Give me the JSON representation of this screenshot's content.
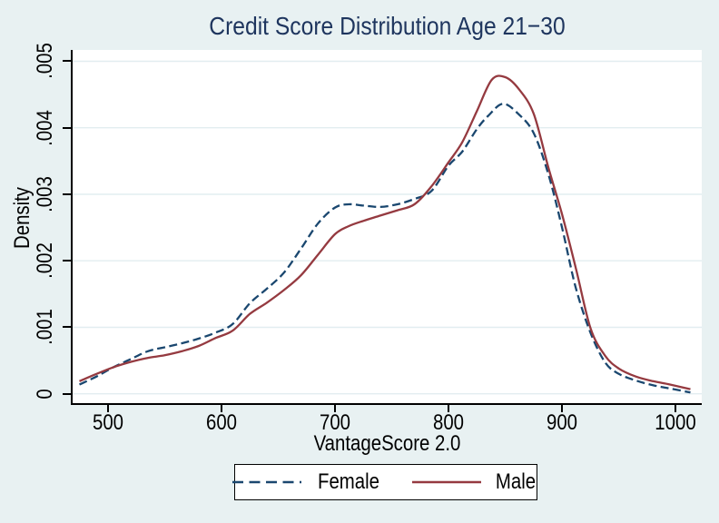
{
  "title": "Credit Score Distribution Age 21−30",
  "chart_data": {
    "type": "line",
    "title": "Credit Score Distribution Age 21−30",
    "xlabel": "VantageScore 2.0",
    "ylabel": "Density",
    "xlim": [
      469,
      1023
    ],
    "ylim": [
      -0.00014,
      0.00517
    ],
    "x_ticks": [
      500,
      600,
      700,
      800,
      900,
      1000
    ],
    "x_tick_labels": [
      "500",
      "600",
      "700",
      "800",
      "900",
      "1000"
    ],
    "y_ticks": [
      0,
      0.001,
      0.002,
      0.003,
      0.004,
      0.005
    ],
    "y_tick_labels": [
      "0",
      ".001",
      ".002",
      ".003",
      ".004",
      ".005"
    ],
    "grid": true,
    "grid_color": "#e2edf0",
    "plot_background": "#ffffff",
    "page_background": "#e8f1f2",
    "title_color": "#1e355e",
    "axis_color": "#000000",
    "legend_position": "bottom-center",
    "series": [
      {
        "name": "Female",
        "style": "dashed",
        "color": "#1a476f",
        "dash": "9,4.5",
        "x": [
          475,
          490,
          505,
          520,
          535,
          550,
          565,
          580,
          595,
          610,
          625,
          640,
          655,
          670,
          685,
          700,
          712,
          725,
          740,
          755,
          770,
          785,
          800,
          812,
          825,
          835,
          848,
          862,
          875,
          888,
          900,
          912,
          925,
          938,
          950,
          965,
          980,
          995,
          1013
        ],
        "y": [
          0.00014,
          0.00026,
          0.0004,
          0.00052,
          0.00064,
          0.0007,
          0.00076,
          0.00083,
          0.00092,
          0.00105,
          0.00136,
          0.00158,
          0.00182,
          0.00218,
          0.00256,
          0.0028,
          0.00285,
          0.00283,
          0.00281,
          0.00285,
          0.00293,
          0.00305,
          0.00343,
          0.00364,
          0.00398,
          0.00418,
          0.00436,
          0.0042,
          0.00392,
          0.0033,
          0.0025,
          0.0016,
          0.00092,
          0.00047,
          0.0003,
          0.0002,
          0.00013,
          8e-05,
          2e-05
        ]
      },
      {
        "name": "Male",
        "style": "solid",
        "color": "#953a40",
        "dash": "",
        "x": [
          475,
          490,
          505,
          520,
          535,
          550,
          565,
          580,
          595,
          610,
          625,
          640,
          655,
          670,
          685,
          700,
          712,
          725,
          740,
          755,
          770,
          785,
          800,
          812,
          825,
          838,
          850,
          862,
          875,
          888,
          900,
          912,
          925,
          938,
          950,
          965,
          980,
          995,
          1013
        ],
        "y": [
          0.00019,
          0.0003,
          0.0004,
          0.00048,
          0.00054,
          0.00058,
          0.00064,
          0.00072,
          0.00084,
          0.00095,
          0.0012,
          0.00137,
          0.00156,
          0.00178,
          0.00209,
          0.0024,
          0.00252,
          0.0026,
          0.00268,
          0.00276,
          0.00285,
          0.00312,
          0.00348,
          0.00378,
          0.00425,
          0.00472,
          0.00476,
          0.00458,
          0.00421,
          0.0034,
          0.0027,
          0.0019,
          0.00099,
          0.00057,
          0.00038,
          0.00026,
          0.00019,
          0.00014,
          7e-05
        ]
      }
    ]
  }
}
